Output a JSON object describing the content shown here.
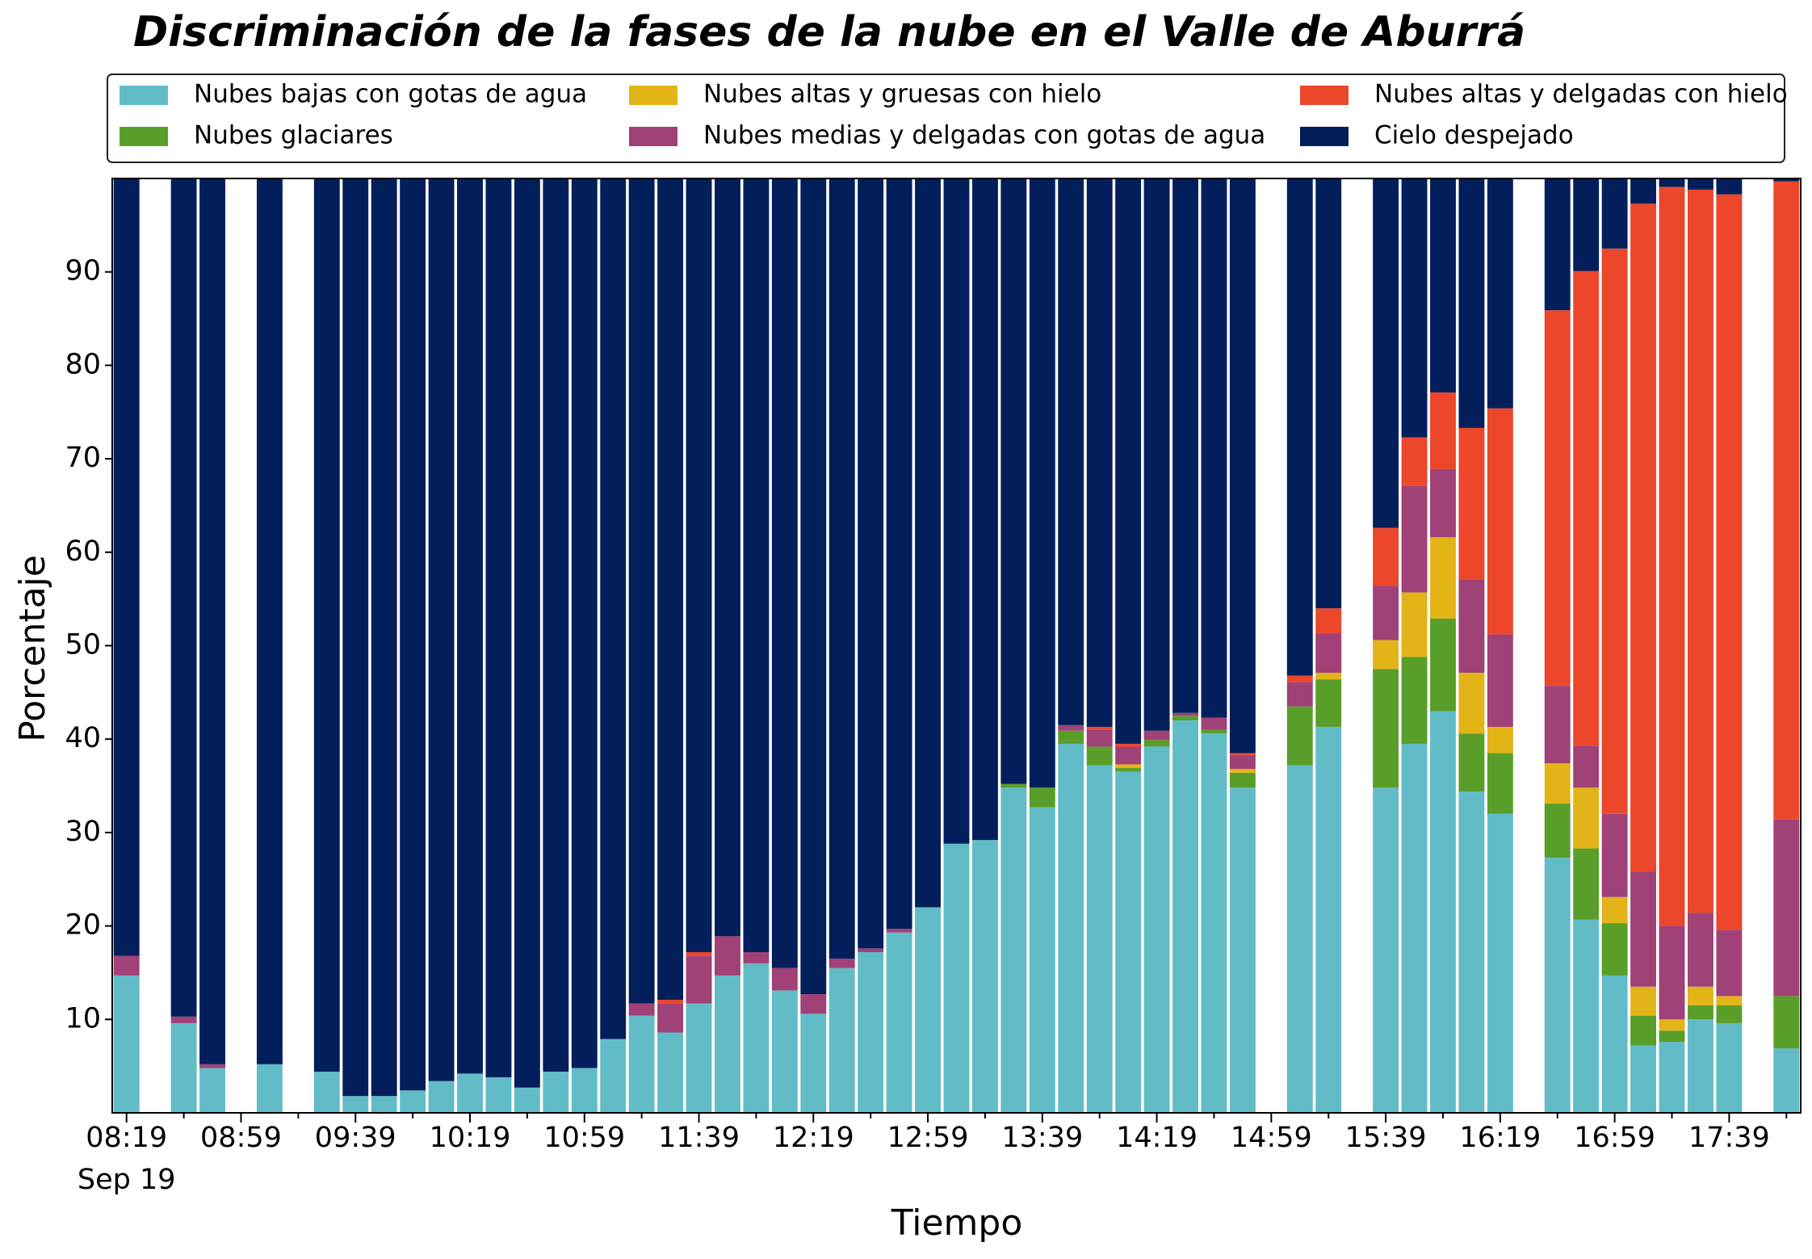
{
  "chart_data": {
    "type": "stacked_bar",
    "title": "Discriminación de la fases de la nube en el Valle de Aburrá",
    "xlabel": "Tiempo",
    "ylabel": "Porcentaje",
    "x_date_label": "Sep 19",
    "categories": [
      "08:19",
      null,
      null,
      null,
      "08:59",
      null,
      null,
      null,
      "09:39",
      null,
      null,
      null,
      "10:19",
      null,
      null,
      null,
      "10:59",
      null,
      null,
      null,
      "11:39",
      null,
      null,
      null,
      "12:19",
      null,
      null,
      null,
      "12:59",
      null,
      null,
      null,
      "13:39",
      null,
      null,
      null,
      "14:19",
      null,
      null,
      null,
      "14:59",
      null,
      null,
      null,
      "15:39",
      null,
      null,
      null,
      "16:19",
      null,
      null,
      null,
      "16:59",
      null,
      null,
      null,
      "17:39",
      null,
      null
    ],
    "ylim": [
      0,
      100
    ],
    "yticks": [
      10,
      20,
      30,
      40,
      50,
      60,
      70,
      80,
      90
    ],
    "grid": false,
    "legend": "top",
    "series": [
      {
        "name": "Nubes bajas con gotas de agua",
        "color": "#62bcc8",
        "values": [
          14.7,
          null,
          9.6,
          4.8,
          null,
          5.2,
          null,
          4.4,
          1.8,
          1.8,
          2.4,
          3.4,
          4.2,
          3.8,
          2.7,
          4.4,
          4.8,
          7.9,
          10.4,
          8.6,
          11.7,
          14.7,
          16.0,
          13.1,
          10.6,
          15.5,
          17.2,
          19.3,
          22.0,
          28.8,
          29.2,
          34.8,
          32.7,
          39.5,
          37.2,
          36.5,
          39.2,
          42.0,
          40.6,
          34.8,
          null,
          37.2,
          41.3,
          null,
          34.8,
          39.5,
          43.0,
          34.4,
          32.0,
          null,
          27.3,
          20.7,
          14.7,
          7.2,
          7.6,
          10.0,
          9.6,
          null,
          6.9
        ]
      },
      {
        "name": "Nubes glaciares",
        "color": "#5a9e2a",
        "values": [
          0,
          null,
          0,
          0,
          null,
          0,
          null,
          0,
          0,
          0,
          0,
          0,
          0,
          0,
          0,
          0,
          0,
          0,
          0,
          0,
          0,
          0,
          0,
          0,
          0,
          0,
          0,
          0,
          0,
          0,
          0,
          0.4,
          2.1,
          1.4,
          2.0,
          0.4,
          0.7,
          0.5,
          0.4,
          1.6,
          null,
          6.3,
          5.1,
          null,
          12.7,
          9.3,
          9.9,
          6.2,
          6.5,
          null,
          5.8,
          7.6,
          5.6,
          3.2,
          1.2,
          1.5,
          1.9,
          null,
          5.6
        ]
      },
      {
        "name": "Nubes altas y gruesas con hielo",
        "color": "#e3b418",
        "values": [
          0,
          null,
          0,
          0,
          null,
          0,
          null,
          0,
          0,
          0,
          0,
          0,
          0,
          0,
          0,
          0,
          0,
          0,
          0,
          0,
          0,
          0,
          0,
          0,
          0,
          0,
          0,
          0,
          0,
          0,
          0,
          0,
          0,
          0,
          0,
          0.4,
          0,
          0,
          0,
          0.4,
          null,
          0,
          0.7,
          null,
          3.1,
          6.9,
          8.7,
          6.5,
          2.8,
          null,
          4.3,
          6.5,
          2.8,
          3.1,
          1.2,
          2.0,
          1.0,
          null,
          0
        ]
      },
      {
        "name": "Nubes medias y delgadas con gotas de agua",
        "color": "#a04177",
        "values": [
          2.1,
          null,
          0.7,
          0.4,
          null,
          0,
          null,
          0,
          0,
          0,
          0,
          0,
          0,
          0,
          0,
          0,
          0,
          0,
          1.3,
          3.1,
          5.1,
          4.2,
          1.2,
          2.4,
          2.1,
          1.0,
          0.4,
          0.4,
          0,
          0,
          0,
          0,
          0,
          0.6,
          1.8,
          1.9,
          1.0,
          0.3,
          1.3,
          1.5,
          null,
          2.6,
          4.2,
          null,
          5.8,
          11.4,
          7.3,
          10.0,
          9.9,
          null,
          8.3,
          4.5,
          8.9,
          12.3,
          10.0,
          7.9,
          7.1,
          null,
          18.9
        ]
      },
      {
        "name": "Nubes altas y delgadas con hielo",
        "color": "#ec462b",
        "values": [
          0,
          null,
          0,
          0,
          null,
          0,
          null,
          0,
          0,
          0,
          0,
          0,
          0,
          0,
          0,
          0,
          0,
          0,
          0,
          0.4,
          0.4,
          0,
          0,
          0,
          0,
          0,
          0,
          0,
          0,
          0,
          0,
          0,
          0,
          0,
          0.3,
          0.3,
          0,
          0,
          0,
          0.2,
          null,
          0.7,
          2.7,
          null,
          6.2,
          5.2,
          8.2,
          16.2,
          24.2,
          null,
          40.2,
          50.8,
          60.5,
          71.5,
          79.1,
          77.4,
          78.7,
          null,
          68.3
        ]
      },
      {
        "name": "Cielo despejado",
        "color": "#021f5b",
        "values": [
          83.2,
          null,
          89.7,
          94.8,
          null,
          94.8,
          null,
          95.6,
          98.2,
          98.2,
          97.6,
          96.6,
          95.8,
          96.2,
          97.3,
          95.6,
          95.2,
          92.1,
          88.3,
          87.9,
          82.8,
          81.1,
          82.8,
          84.5,
          87.3,
          83.5,
          82.4,
          80.3,
          78.0,
          71.2,
          70.8,
          64.8,
          65.2,
          58.5,
          58.7,
          60.5,
          59.1,
          57.2,
          57.7,
          61.5,
          null,
          53.2,
          46.0,
          null,
          37.4,
          27.7,
          22.9,
          26.7,
          24.6,
          null,
          14.1,
          9.9,
          7.5,
          2.7,
          0.9,
          1.2,
          1.7,
          null,
          0.3
        ]
      }
    ]
  }
}
